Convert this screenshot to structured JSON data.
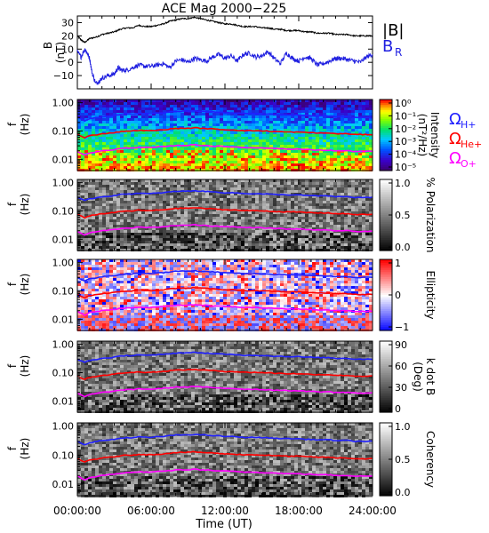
{
  "title": "ACE Mag 2000−225",
  "xlabel": "Time (UT)",
  "x_ticks": [
    "00:00:00",
    "06:00:00",
    "12:00:00",
    "18:00:00",
    "24:00:00"
  ],
  "colors": {
    "B": "#000000",
    "BR": "#1f1fe0",
    "H": "#2020ff",
    "He": "#ff0000",
    "O": "#ff00ff"
  },
  "chart_data": [
    {
      "type": "line",
      "ylabel": "B\n(nT)",
      "ylim": [
        -20,
        35
      ],
      "yticks": [
        -10,
        0,
        10,
        20,
        30
      ],
      "xlim": [
        0,
        24
      ],
      "legend": [
        "|B|",
        "B_R"
      ],
      "legend_labels": {
        "B": "|B|",
        "BR_main": "B",
        "BR_sub": "R"
      },
      "series": [
        {
          "name": "|B|",
          "color": "#000000",
          "x": [
            0,
            0.3,
            0.6,
            1,
            1.5,
            2,
            2.5,
            3,
            3.5,
            4,
            4.5,
            5,
            5.5,
            6,
            6.5,
            7,
            7.5,
            8,
            8.5,
            9,
            9.5,
            10,
            10.5,
            11,
            11.5,
            12,
            12.5,
            13,
            13.5,
            14,
            14.5,
            15,
            15.5,
            16,
            16.5,
            17,
            17.5,
            18,
            18.5,
            19,
            19.5,
            20,
            20.5,
            21,
            21.5,
            22,
            22.5,
            23,
            23.5,
            24
          ],
          "values": [
            20,
            17,
            15,
            18,
            19,
            21,
            22,
            23,
            25,
            26,
            26,
            28,
            27,
            27,
            28,
            29,
            31,
            32,
            33,
            33,
            34,
            33,
            32,
            31,
            30,
            29,
            29,
            28,
            27,
            27,
            27,
            26,
            26,
            25,
            25,
            24,
            24,
            24,
            23,
            23,
            22,
            22,
            22,
            21,
            21,
            21,
            20,
            20,
            20,
            20
          ]
        },
        {
          "name": "B_R",
          "color": "#1f1fe0",
          "x": [
            0,
            0.3,
            0.6,
            0.8,
            1,
            1.2,
            1.5,
            1.8,
            2,
            2.5,
            3,
            3.3,
            3.6,
            4,
            4.5,
            5,
            5.5,
            6,
            6.5,
            7,
            7.5,
            8,
            8.5,
            9,
            9.5,
            10,
            10.5,
            11,
            11.5,
            12,
            12.5,
            13,
            13.5,
            14,
            14.5,
            15,
            15.5,
            16,
            16.5,
            17,
            17.5,
            18,
            18.5,
            19,
            19.5,
            20,
            20.5,
            21,
            21.5,
            22,
            22.5,
            23,
            23.5,
            24
          ],
          "values": [
            8,
            4,
            10,
            7,
            3,
            -8,
            -16,
            -14,
            -12,
            -10,
            -9,
            -4,
            -6,
            -6,
            -4,
            -2,
            -3,
            -3,
            -2,
            -1,
            -4,
            1,
            2,
            0,
            3,
            2,
            1,
            4,
            6,
            3,
            5,
            1,
            6,
            7,
            4,
            5,
            8,
            3,
            -1,
            7,
            3,
            1,
            4,
            3,
            -2,
            -1,
            1,
            3,
            3,
            2,
            1,
            0,
            4,
            6
          ]
        }
      ]
    },
    {
      "type": "heatmap",
      "ylabel": "f\n(Hz)",
      "ylim": [
        0.004,
        1.3
      ],
      "yscale": "log",
      "yticks": [
        1.0,
        0.1,
        0.01
      ],
      "ytick_labels": [
        "1.00",
        "0.10",
        "0.01"
      ],
      "colorbar_label": "Intensity\n(nT²/Hz)",
      "colorbar_ticks": [
        "10⁰",
        "10⁻¹",
        "10⁻²",
        "10⁻³",
        "10⁻⁴",
        "10⁻⁵"
      ],
      "colormap": "rainbow",
      "ion_legend": [
        "ΩH+",
        "ΩHe+",
        "ΩO+"
      ],
      "ion_legend_parts": [
        {
          "main": "Ω",
          "sub": "H+"
        },
        {
          "main": "Ω",
          "sub": "He+"
        },
        {
          "main": "Ω",
          "sub": "O+"
        }
      ]
    },
    {
      "type": "heatmap",
      "ylabel": "f\n(Hz)",
      "yscale": "log",
      "ytick_labels": [
        "1.00",
        "0.10",
        "0.01"
      ],
      "colorbar_label": "% Polarization",
      "colorbar_ticks": [
        "1.0",
        "0.5",
        "0.0"
      ],
      "colormap": "gray"
    },
    {
      "type": "heatmap",
      "ylabel": "f\n(Hz)",
      "yscale": "log",
      "ytick_labels": [
        "1.00",
        "0.10",
        "0.01"
      ],
      "colorbar_label": "Ellipticity",
      "colorbar_ticks": [
        "1",
        "0",
        "−1"
      ],
      "colormap": "blue-white-red"
    },
    {
      "type": "heatmap",
      "ylabel": "f\n(Hz)",
      "yscale": "log",
      "ytick_labels": [
        "1.00",
        "0.10",
        "0.01"
      ],
      "colorbar_label": "k dot B\n(Deg)",
      "colorbar_ticks": [
        "90",
        "60",
        "30",
        "0"
      ],
      "colormap": "gray"
    },
    {
      "type": "heatmap",
      "ylabel": "f\n(Hz)",
      "yscale": "log",
      "ytick_labels": [
        "1.00",
        "0.10",
        "0.01"
      ],
      "colorbar_label": "Coherency",
      "colorbar_ticks": [
        "1.0",
        "0.5",
        "0.0"
      ],
      "colormap": "gray"
    }
  ],
  "gyrofrequencies": {
    "x": [
      0,
      0.3,
      0.6,
      1,
      1.5,
      2,
      2.5,
      3,
      3.5,
      4,
      4.5,
      5,
      5.5,
      6,
      6.5,
      7,
      7.5,
      8,
      8.5,
      9,
      9.5,
      10,
      10.5,
      11,
      11.5,
      12,
      12.5,
      13,
      13.5,
      14,
      14.5,
      15,
      15.5,
      16,
      16.5,
      17,
      17.5,
      18,
      18.5,
      19,
      19.5,
      20,
      20.5,
      21,
      21.5,
      22,
      22.5,
      23,
      23.5,
      24
    ],
    "H": [
      0.3,
      0.26,
      0.23,
      0.27,
      0.29,
      0.32,
      0.33,
      0.35,
      0.38,
      0.4,
      0.4,
      0.43,
      0.41,
      0.41,
      0.43,
      0.44,
      0.47,
      0.49,
      0.5,
      0.5,
      0.52,
      0.5,
      0.49,
      0.47,
      0.46,
      0.44,
      0.44,
      0.43,
      0.41,
      0.41,
      0.41,
      0.4,
      0.4,
      0.38,
      0.38,
      0.37,
      0.37,
      0.37,
      0.35,
      0.35,
      0.34,
      0.34,
      0.34,
      0.32,
      0.32,
      0.32,
      0.3,
      0.3,
      0.3,
      0.3
    ],
    "He": [
      0.075,
      0.065,
      0.058,
      0.068,
      0.073,
      0.08,
      0.083,
      0.088,
      0.095,
      0.1,
      0.1,
      0.107,
      0.103,
      0.103,
      0.107,
      0.11,
      0.118,
      0.122,
      0.125,
      0.125,
      0.13,
      0.125,
      0.122,
      0.118,
      0.115,
      0.11,
      0.11,
      0.107,
      0.103,
      0.103,
      0.103,
      0.1,
      0.1,
      0.095,
      0.095,
      0.092,
      0.092,
      0.092,
      0.088,
      0.088,
      0.085,
      0.085,
      0.085,
      0.08,
      0.08,
      0.08,
      0.075,
      0.075,
      0.075,
      0.075
    ],
    "O": [
      0.019,
      0.016,
      0.014,
      0.017,
      0.018,
      0.02,
      0.021,
      0.022,
      0.024,
      0.025,
      0.025,
      0.027,
      0.026,
      0.026,
      0.027,
      0.028,
      0.029,
      0.031,
      0.031,
      0.031,
      0.033,
      0.031,
      0.031,
      0.029,
      0.029,
      0.028,
      0.028,
      0.027,
      0.026,
      0.026,
      0.026,
      0.025,
      0.025,
      0.024,
      0.024,
      0.023,
      0.023,
      0.023,
      0.022,
      0.022,
      0.021,
      0.021,
      0.021,
      0.02,
      0.02,
      0.02,
      0.019,
      0.019,
      0.019,
      0.019
    ]
  }
}
